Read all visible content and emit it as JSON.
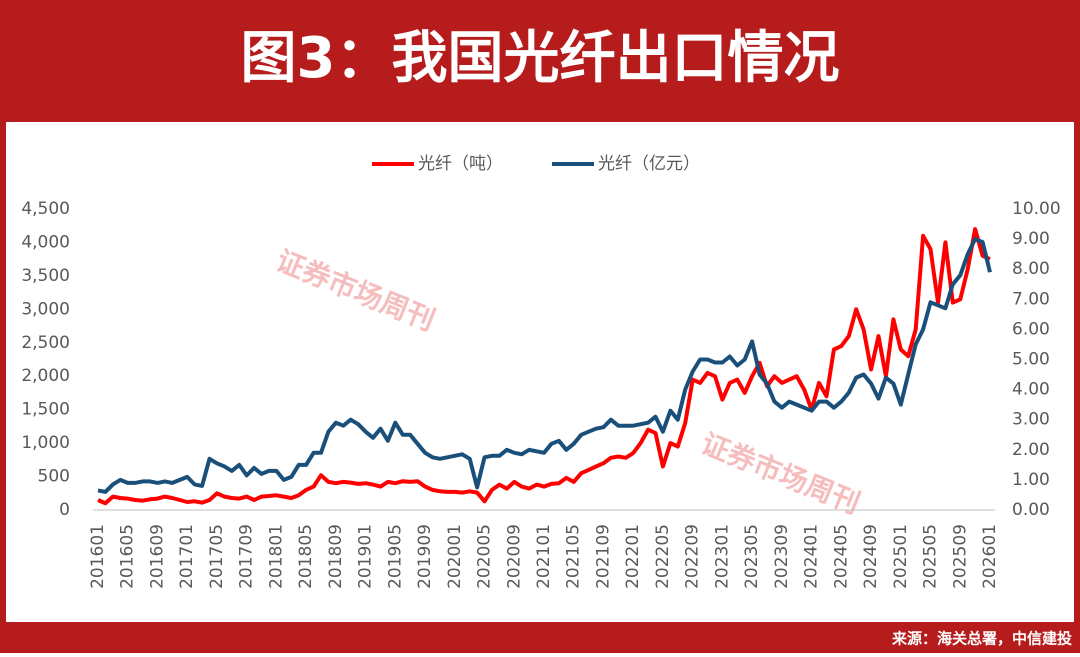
{
  "chart_data": {
    "type": "line",
    "title": "图3：我国光纤出口情况",
    "source": "来源：海关总署，中信建投",
    "watermarks": [
      "证券市场周刊",
      "证券市场周刊"
    ],
    "categories": [
      "201601",
      null,
      null,
      null,
      "201605",
      null,
      null,
      null,
      "201609",
      null,
      null,
      null,
      "201701",
      null,
      null,
      null,
      "201705",
      null,
      null,
      null,
      "201709",
      null,
      null,
      null,
      "201801",
      null,
      null,
      null,
      "201805",
      null,
      null,
      null,
      "201809",
      null,
      null,
      null,
      "201901",
      null,
      null,
      null,
      "201905",
      null,
      null,
      null,
      "201909",
      null,
      null,
      null,
      "202001",
      null,
      null,
      null,
      "202005",
      null,
      null,
      null,
      "202009",
      null,
      null,
      null,
      "202101",
      null,
      null,
      null,
      "202105",
      null,
      null,
      null,
      "202109",
      null,
      null,
      null,
      "202201",
      null,
      null,
      null,
      "202205",
      null,
      null,
      null,
      "202209",
      null,
      null,
      null,
      "202301",
      null,
      null,
      null,
      "202305",
      null,
      null,
      null,
      "202309",
      null,
      null,
      null,
      "202401",
      null,
      null,
      null,
      "202405",
      null,
      null,
      null,
      "202409",
      null,
      null,
      null,
      "202501",
      null,
      null,
      null,
      "202505",
      null,
      null,
      null,
      "202509",
      null,
      null,
      null,
      "202601"
    ],
    "series": [
      {
        "name": "光纤（吨）",
        "color": "#ff0000",
        "values": [
          150,
          100,
          200,
          180,
          170,
          150,
          140,
          160,
          170,
          200,
          180,
          150,
          120,
          130,
          110,
          150,
          250,
          200,
          180,
          170,
          200,
          150,
          200,
          210,
          220,
          200,
          180,
          220,
          300,
          350,
          520,
          420,
          400,
          420,
          410,
          390,
          400,
          380,
          350,
          420,
          400,
          430,
          420,
          430,
          350,
          300,
          280,
          270,
          270,
          260,
          280,
          260,
          130,
          300,
          380,
          320,
          420,
          350,
          320,
          380,
          350,
          390,
          400,
          480,
          420,
          550,
          600,
          650,
          700,
          780,
          800,
          780,
          850,
          1000,
          1200,
          1150,
          650,
          1000,
          950,
          1300,
          1950,
          1900,
          2050,
          2000,
          1650,
          1900,
          1950,
          1750,
          2000,
          2200,
          1850,
          2000,
          1900,
          1950,
          2000,
          1800,
          1500,
          1900,
          1700,
          2400,
          2450,
          2600,
          3000,
          2700,
          2100,
          2600,
          2000,
          2850,
          2400,
          2300,
          2700,
          4100,
          3900,
          3100,
          4000,
          3100,
          3150,
          3600,
          4200,
          3800,
          3750
        ]
      },
      {
        "name": "光纤（亿元）",
        "color": "#1a4f7a",
        "axis": "y2",
        "values": [
          0.65,
          0.6,
          0.85,
          1.0,
          0.9,
          0.9,
          0.95,
          0.95,
          0.9,
          0.95,
          0.9,
          1.0,
          1.1,
          0.85,
          0.8,
          1.7,
          1.55,
          1.45,
          1.3,
          1.5,
          1.15,
          1.4,
          1.2,
          1.3,
          1.3,
          1.0,
          1.1,
          1.5,
          1.5,
          1.9,
          1.9,
          2.6,
          2.9,
          2.8,
          3.0,
          2.85,
          2.6,
          2.4,
          2.7,
          2.3,
          2.9,
          2.5,
          2.5,
          2.2,
          1.9,
          1.75,
          1.7,
          1.75,
          1.8,
          1.85,
          1.7,
          0.75,
          1.75,
          1.8,
          1.8,
          2.0,
          1.9,
          1.85,
          2.0,
          1.95,
          1.9,
          2.2,
          2.3,
          2.0,
          2.2,
          2.5,
          2.6,
          2.7,
          2.75,
          3.0,
          2.8,
          2.8,
          2.8,
          2.85,
          2.9,
          3.1,
          2.6,
          3.3,
          3.0,
          4.0,
          4.6,
          5.0,
          5.0,
          4.9,
          4.9,
          5.1,
          4.8,
          5.0,
          5.6,
          4.5,
          4.2,
          3.6,
          3.4,
          3.6,
          3.5,
          3.4,
          3.3,
          3.6,
          3.6,
          3.4,
          3.6,
          3.9,
          4.4,
          4.5,
          4.2,
          3.7,
          4.4,
          4.2,
          3.5,
          4.5,
          5.5,
          6.0,
          6.9,
          6.8,
          6.7,
          7.5,
          7.8,
          8.5,
          9.0,
          8.9,
          7.9
        ]
      }
    ],
    "ylim": [
      0,
      4500
    ],
    "yticks": [
      0,
      500,
      {
        "value": 1000,
        "label": "1,000"
      },
      {
        "value": 1500,
        "label": "1,500"
      },
      {
        "value": 2000,
        "label": "2,000"
      },
      {
        "value": 2500,
        "label": "2,500"
      },
      {
        "value": 3000,
        "label": "3,000"
      },
      {
        "value": 3500,
        "label": "3,500"
      },
      {
        "value": 4000,
        "label": "4,000"
      },
      {
        "value": 4500,
        "label": "4,500"
      }
    ],
    "y2lim": [
      0,
      10
    ],
    "y2ticks": [
      {
        "value": 0,
        "label": "0.00"
      },
      {
        "value": 1,
        "label": "1.00"
      },
      {
        "value": 2,
        "label": "2.00"
      },
      {
        "value": 3,
        "label": "3.00"
      },
      {
        "value": 4,
        "label": "4.00"
      },
      {
        "value": 5,
        "label": "5.00"
      },
      {
        "value": 6,
        "label": "6.00"
      },
      {
        "value": 7,
        "label": "7.00"
      },
      {
        "value": 8,
        "label": "8.00"
      },
      {
        "value": 9,
        "label": "9.00"
      },
      {
        "value": 10,
        "label": "10.00"
      }
    ],
    "legend": "top"
  }
}
